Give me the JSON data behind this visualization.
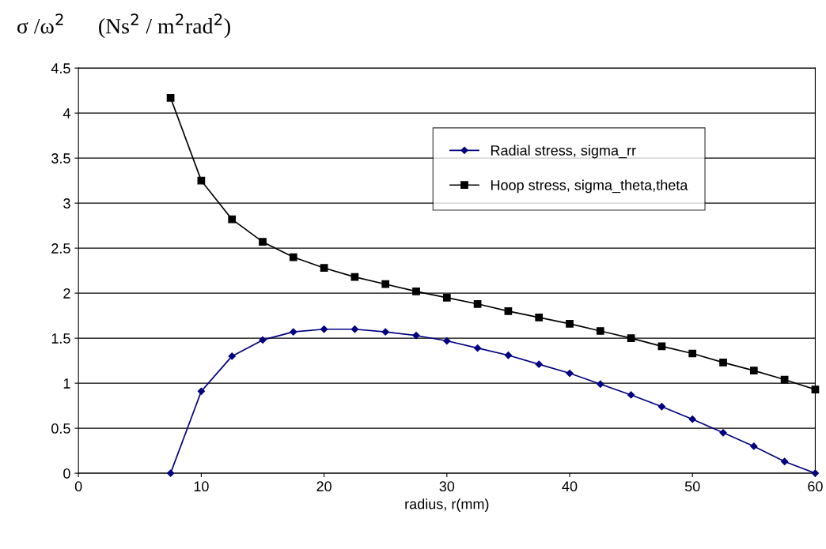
{
  "chart_data": {
    "type": "line",
    "ylabel": "σ /ω$^{2}$      (Ns$^{2}$ / m$^{2}$rad$^{2}$)",
    "xlabel": "radius, r(mm)",
    "x": [
      7.5,
      10,
      12.5,
      15,
      17.5,
      20,
      22.5,
      25,
      27.5,
      30,
      32.5,
      35,
      37.5,
      40,
      42.5,
      45,
      47.5,
      50,
      52.5,
      55,
      57.5,
      60
    ],
    "series": [
      {
        "name": "Radial stress, sigma_rr",
        "color": "#000080",
        "marker": "diamond",
        "values": [
          0,
          0.91,
          1.3,
          1.48,
          1.57,
          1.6,
          1.6,
          1.57,
          1.53,
          1.47,
          1.39,
          1.31,
          1.21,
          1.11,
          0.99,
          0.87,
          0.74,
          0.6,
          0.45,
          0.3,
          0.13,
          0
        ]
      },
      {
        "name": "Hoop stress, sigma_theta,theta",
        "color": "#000000",
        "marker": "square",
        "values": [
          4.17,
          3.25,
          2.82,
          2.57,
          2.4,
          2.28,
          2.18,
          2.1,
          2.02,
          1.95,
          1.88,
          1.8,
          1.73,
          1.66,
          1.58,
          1.5,
          1.41,
          1.33,
          1.23,
          1.14,
          1.04,
          0.93
        ]
      }
    ],
    "xlim": [
      0,
      60
    ],
    "xticks": [
      0,
      10,
      20,
      30,
      40,
      50,
      60
    ],
    "ylim": [
      0,
      4.5
    ],
    "yticks": [
      0,
      0.5,
      1,
      1.5,
      2,
      2.5,
      3,
      3.5,
      4,
      4.5
    ],
    "grid": "y",
    "legend": "top right",
    "line_style": "solid"
  }
}
